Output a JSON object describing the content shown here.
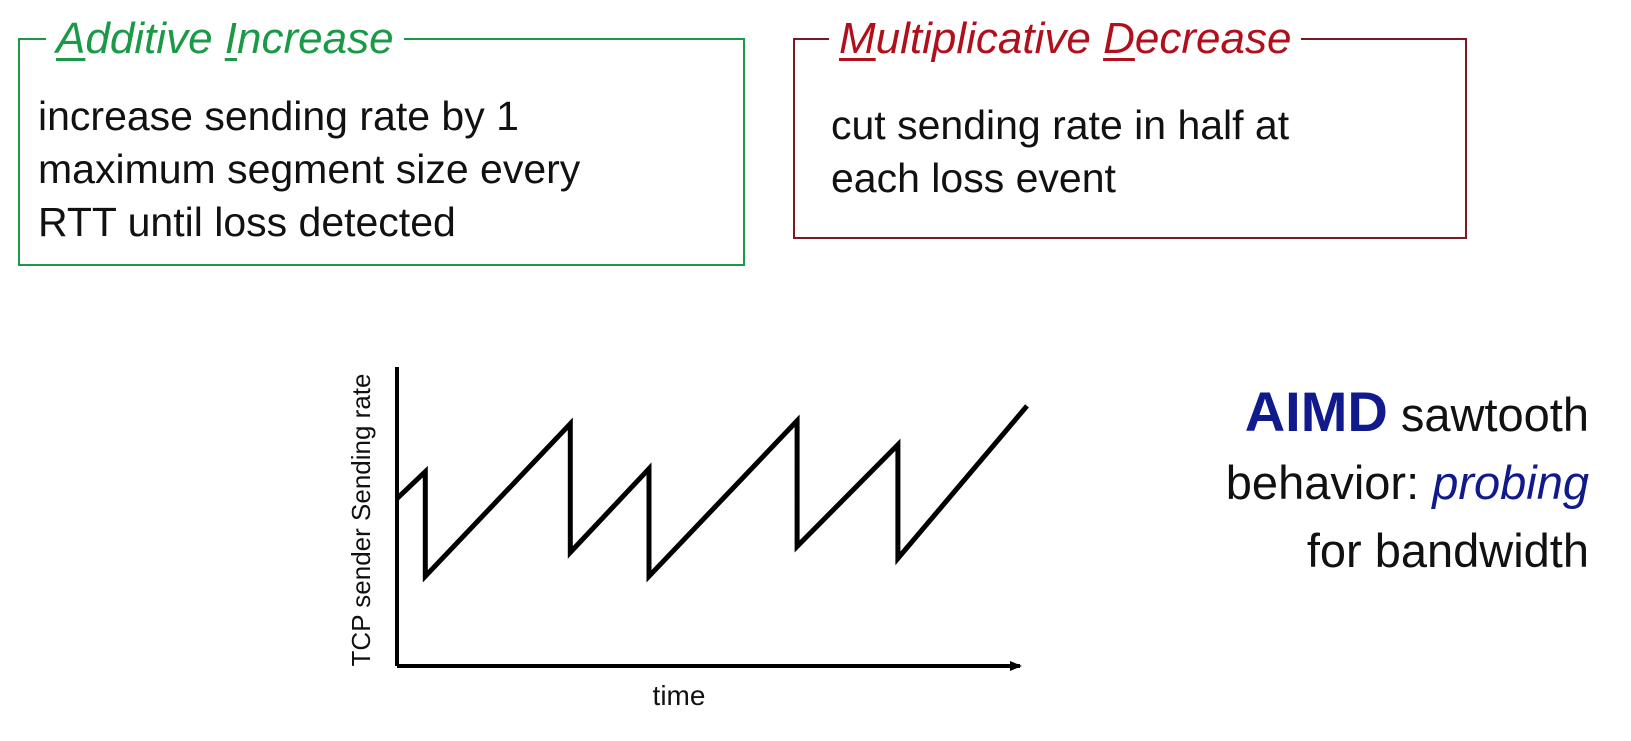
{
  "additive_increase": {
    "title_first_letter_1": "A",
    "title_rest_1": "dditive ",
    "title_first_letter_2": "I",
    "title_rest_2": "ncrease",
    "body": "increase sending rate by 1\nmaximum segment size every\nRTT until loss detected",
    "color": "#1a9a47"
  },
  "multiplicative_decrease": {
    "title_first_letter_1": "M",
    "title_rest_1": "ultiplicative ",
    "title_first_letter_2": "D",
    "title_rest_2": "ecrease",
    "body": "cut sending rate in half at\neach loss event",
    "color": "#b0101c"
  },
  "chart_data": {
    "type": "line",
    "ylabel": "TCP sender  Sending rate",
    "xlabel": "time",
    "series": [
      {
        "points": [
          [
            0,
            0.56
          ],
          [
            0.045,
            0.65
          ],
          [
            0.045,
            0.3
          ],
          [
            0.275,
            0.81
          ],
          [
            0.275,
            0.38
          ],
          [
            0.4,
            0.66
          ],
          [
            0.4,
            0.3
          ],
          [
            0.635,
            0.82
          ],
          [
            0.635,
            0.4
          ],
          [
            0.795,
            0.74
          ],
          [
            0.795,
            0.36
          ],
          [
            1.0,
            0.87
          ]
        ]
      }
    ]
  },
  "caption": {
    "aimd": "AIMD",
    "line1_rest": " sawtooth",
    "line2_prefix": "behavior: ",
    "probing": "probing",
    "line3": "for bandwidth",
    "accent_color": "#101a8c"
  }
}
